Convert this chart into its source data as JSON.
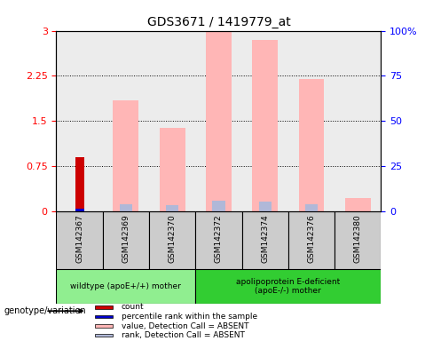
{
  "title": "GDS3671 / 1419779_at",
  "samples": [
    "GSM142367",
    "GSM142369",
    "GSM142370",
    "GSM142372",
    "GSM142374",
    "GSM142376",
    "GSM142380"
  ],
  "count_values": [
    0.9,
    0,
    0,
    0,
    0,
    0,
    0
  ],
  "percentile_rank_values": [
    0.05,
    0,
    0,
    0,
    0,
    0,
    0
  ],
  "value_absent": [
    0,
    1.85,
    1.38,
    3.0,
    2.85,
    2.2,
    0.22
  ],
  "rank_absent": [
    0,
    0.12,
    0.1,
    0.18,
    0.17,
    0.12,
    0
  ],
  "ylim_left": [
    0,
    3.0
  ],
  "ylim_right": [
    0,
    100
  ],
  "yticks_left": [
    0,
    0.75,
    1.5,
    2.25,
    3.0
  ],
  "yticks_right": [
    0,
    25,
    50,
    75,
    100
  ],
  "ytick_labels_left": [
    "0",
    "0.75",
    "1.5",
    "2.25",
    "3"
  ],
  "ytick_labels_right": [
    "0",
    "25",
    "50",
    "75",
    "100%"
  ],
  "groups": [
    {
      "label": "wildtype (apoE+/+) mother",
      "n_samples": 3,
      "color": "#90ee90"
    },
    {
      "label": "apolipoprotein E-deficient\n(apoE-/-) mother",
      "n_samples": 4,
      "color": "#32cd32"
    }
  ],
  "color_count": "#cc0000",
  "color_percentile": "#0000cc",
  "color_value_absent": "#ffb6b6",
  "color_rank_absent": "#b0b8d8",
  "bar_width": 0.55,
  "legend_items": [
    {
      "label": "count",
      "color": "#cc0000"
    },
    {
      "label": "percentile rank within the sample",
      "color": "#0000cc"
    },
    {
      "label": "value, Detection Call = ABSENT",
      "color": "#ffb6b6"
    },
    {
      "label": "rank, Detection Call = ABSENT",
      "color": "#b0b8d8"
    }
  ],
  "genotype_label": "genotype/variation",
  "background_color": "#ffffff",
  "plot_bg_color": "#ececec",
  "x_axis_bg_color": "#cccccc"
}
